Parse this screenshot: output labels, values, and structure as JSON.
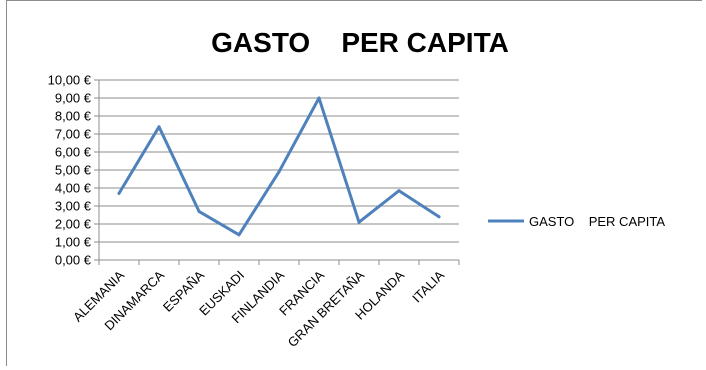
{
  "chart_data": {
    "type": "line",
    "title": "GASTO    PER CAPITA",
    "categories": [
      "ALEMANIA",
      "DINAMARCA",
      "ESPAÑA",
      "EUSKADI",
      "FINLANDIA",
      "FRANCIA",
      "GRAN BRETAÑA",
      "HOLANDA",
      "ITALIA"
    ],
    "series": [
      {
        "name": "GASTO    PER CAPITA",
        "values": [
          3.7,
          7.4,
          2.7,
          1.4,
          4.9,
          9.0,
          2.1,
          3.85,
          2.4
        ],
        "color": "#4f81bd"
      }
    ],
    "ylim": [
      0,
      10
    ],
    "yticks": [
      "0,00 €",
      "1,00 €",
      "2,00 €",
      "3,00 €",
      "4,00 €",
      "5,00 €",
      "6,00 €",
      "7,00 €",
      "8,00 €",
      "9,00 €",
      "10,00 €"
    ],
    "grid": true,
    "legend": "right",
    "xlabel": "",
    "ylabel": ""
  }
}
